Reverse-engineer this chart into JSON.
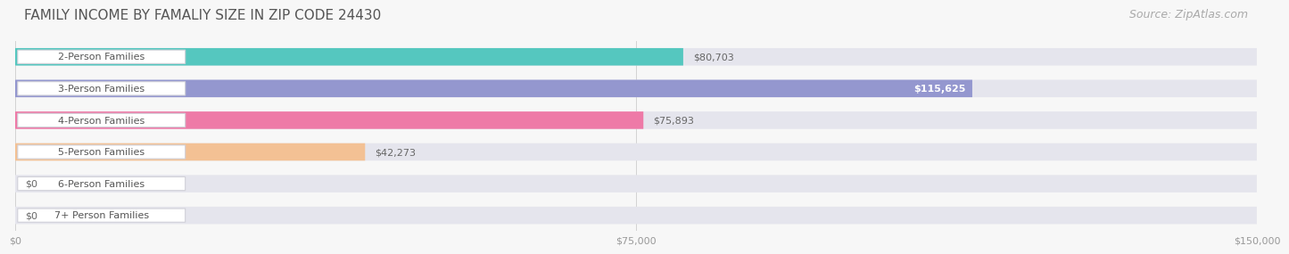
{
  "title": "FAMILY INCOME BY FAMALIY SIZE IN ZIP CODE 24430",
  "source": "Source: ZipAtlas.com",
  "categories": [
    "2-Person Families",
    "3-Person Families",
    "4-Person Families",
    "5-Person Families",
    "6-Person Families",
    "7+ Person Families"
  ],
  "values": [
    80703,
    115625,
    75893,
    42273,
    0,
    0
  ],
  "bar_colors": [
    "#45C4BA",
    "#8B8FCC",
    "#F06FA0",
    "#F5BE8A",
    "#F5A0A0",
    "#A0C0F0"
  ],
  "value_labels": [
    "$80,703",
    "$115,625",
    "$75,893",
    "$42,273",
    "$0",
    "$0"
  ],
  "value_label_inside": [
    false,
    true,
    false,
    false,
    false,
    false
  ],
  "xlim_max": 150000,
  "xticks": [
    0,
    75000,
    150000
  ],
  "xtick_labels": [
    "$0",
    "$75,000",
    "$150,000"
  ],
  "bg_color": "#f7f7f7",
  "bar_bg_color": "#e5e5ed",
  "title_fontsize": 11,
  "source_fontsize": 9,
  "label_fontsize": 8,
  "value_fontsize": 8
}
